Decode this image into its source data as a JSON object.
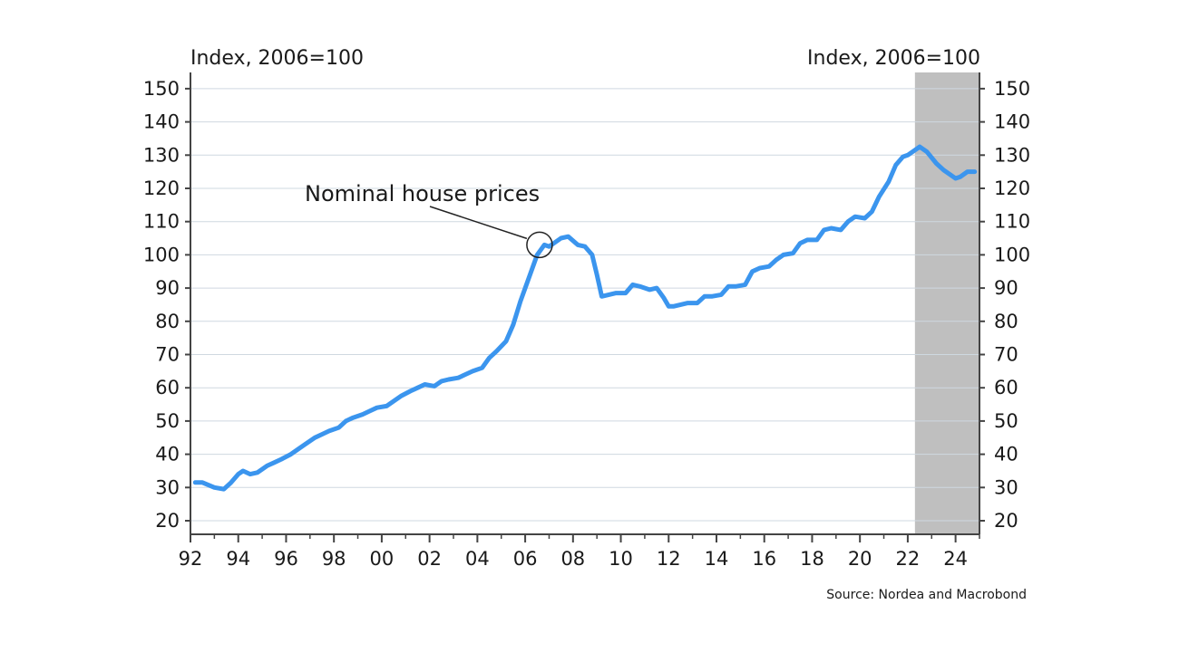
{
  "chart_data": {
    "type": "line",
    "y_unit_left": "Index, 2006=100",
    "y_unit_right": "Index, 2006=100",
    "ylim": [
      15,
      152
    ],
    "yticks": [
      20,
      30,
      40,
      50,
      60,
      70,
      80,
      90,
      100,
      110,
      120,
      130,
      140,
      150
    ],
    "xlim": [
      1992.0,
      2025.0
    ],
    "xticks": [
      {
        "value": 1992,
        "label": "92"
      },
      {
        "value": 1994,
        "label": "94"
      },
      {
        "value": 1996,
        "label": "96"
      },
      {
        "value": 1998,
        "label": "98"
      },
      {
        "value": 2000,
        "label": "00"
      },
      {
        "value": 2002,
        "label": "02"
      },
      {
        "value": 2004,
        "label": "04"
      },
      {
        "value": 2006,
        "label": "06"
      },
      {
        "value": 2008,
        "label": "08"
      },
      {
        "value": 2010,
        "label": "10"
      },
      {
        "value": 2012,
        "label": "12"
      },
      {
        "value": 2014,
        "label": "14"
      },
      {
        "value": 2016,
        "label": "16"
      },
      {
        "value": 2018,
        "label": "18"
      },
      {
        "value": 2020,
        "label": "20"
      },
      {
        "value": 2022,
        "label": "22"
      },
      {
        "value": 2024,
        "label": "24"
      }
    ],
    "grid": true,
    "shaded_region": {
      "x_start": 2022.3,
      "x_end": 2025.0,
      "color": "#bfbfbf"
    },
    "series": [
      {
        "color": "#3b95ee",
        "x": [
          1992.2,
          1992.5,
          1993.0,
          1993.4,
          1993.7,
          1994.0,
          1994.2,
          1994.5,
          1994.8,
          1995.2,
          1995.5,
          1995.8,
          1996.2,
          1996.5,
          1996.8,
          1997.2,
          1997.5,
          1997.8,
          1998.2,
          1998.5,
          1998.8,
          1999.2,
          1999.5,
          1999.8,
          2000.2,
          2000.5,
          2000.8,
          2001.2,
          2001.5,
          2001.8,
          2002.2,
          2002.5,
          2002.8,
          2003.2,
          2003.5,
          2003.8,
          2004.2,
          2004.5,
          2004.8,
          2005.2,
          2005.5,
          2005.8,
          2006.2,
          2006.5,
          2006.8,
          2007.0,
          2007.5,
          2007.8,
          2008.2,
          2008.5,
          2008.8,
          2009.0,
          2009.2,
          2009.5,
          2009.8,
          2010.2,
          2010.5,
          2010.8,
          2011.2,
          2011.5,
          2011.8,
          2012.0,
          2012.2,
          2012.5,
          2012.8,
          2013.2,
          2013.5,
          2013.8,
          2014.2,
          2014.5,
          2014.8,
          2015.2,
          2015.5,
          2015.8,
          2016.2,
          2016.5,
          2016.8,
          2017.2,
          2017.5,
          2017.8,
          2018.2,
          2018.5,
          2018.8,
          2019.2,
          2019.5,
          2019.8,
          2020.2,
          2020.5,
          2020.8,
          2021.2,
          2021.5,
          2021.8,
          2022.0,
          2022.3,
          2022.5,
          2022.8,
          2023.2,
          2023.5,
          2023.8,
          2024.0,
          2024.2,
          2024.5,
          2024.8
        ],
        "y": [
          31.5,
          31.5,
          30.0,
          29.5,
          31.5,
          34.0,
          35.0,
          34.0,
          34.5,
          36.5,
          37.5,
          38.5,
          40.0,
          41.5,
          43.0,
          45.0,
          46.0,
          47.0,
          48.0,
          50.0,
          51.0,
          52.0,
          53.0,
          54.0,
          54.5,
          56.0,
          57.5,
          59.0,
          60.0,
          61.0,
          60.5,
          62.0,
          62.5,
          63.0,
          64.0,
          65.0,
          66.0,
          69.0,
          71.0,
          74.0,
          79.0,
          86.0,
          94.0,
          100.0,
          103.0,
          102.5,
          105.0,
          105.5,
          103.0,
          102.5,
          100.0,
          94.0,
          87.5,
          88.0,
          88.5,
          88.5,
          91.0,
          90.5,
          89.5,
          90.0,
          87.0,
          84.5,
          84.5,
          85.0,
          85.5,
          85.5,
          87.5,
          87.5,
          88.0,
          90.5,
          90.5,
          91.0,
          95.0,
          96.0,
          96.5,
          98.5,
          100.0,
          100.5,
          103.5,
          104.5,
          104.5,
          107.5,
          108.0,
          107.5,
          110.0,
          111.5,
          111.0,
          113.0,
          117.5,
          122.0,
          127.0,
          129.5,
          130.0,
          131.5,
          132.5,
          131.0,
          127.5,
          125.5,
          124.0,
          123.0,
          123.5,
          125.0,
          125.0
        ]
      }
    ],
    "annotations": [
      {
        "text": "Nominal house prices",
        "x": 2006.6,
        "y": 103.0
      }
    ],
    "source": "Source: Nordea and Macrobond"
  }
}
